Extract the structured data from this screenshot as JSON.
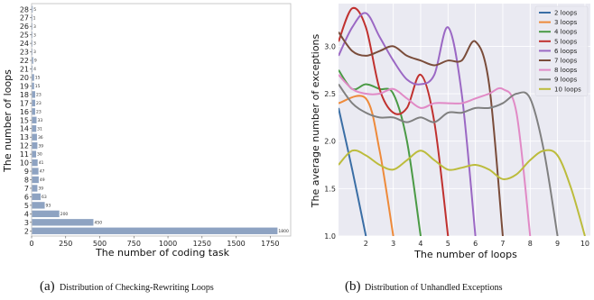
{
  "chart_data": [
    {
      "type": "bar",
      "orientation": "horizontal",
      "categories": [
        "2",
        "3",
        "4",
        "5",
        "6",
        "7",
        "8",
        "9",
        "10",
        "11",
        "12",
        "13",
        "14",
        "15",
        "16",
        "17",
        "18",
        "19",
        "20",
        "21",
        "22",
        "23",
        "24",
        "25",
        "26",
        "27",
        "28"
      ],
      "values": [
        1800,
        450,
        200,
        93,
        63,
        39,
        49,
        47,
        41,
        30,
        39,
        36,
        31,
        33,
        23,
        23,
        23,
        15,
        15,
        4,
        9,
        3,
        3,
        3,
        3,
        1,
        5
      ],
      "value_labels": [
        "1800",
        "450",
        "200",
        "93",
        "63",
        "39",
        "49",
        "47",
        "41",
        "30",
        "39",
        "36",
        "31",
        "33",
        "23",
        "23",
        "23",
        "15",
        "15",
        "4",
        "9",
        "3",
        "3",
        "3",
        "3",
        "1",
        "5"
      ],
      "xlabel": "The number of coding task",
      "ylabel": "The number of loops",
      "xlim": [
        0,
        1900
      ],
      "xticks": [
        "0",
        "250",
        "500",
        "750",
        "1000",
        "1250",
        "1500",
        "1750"
      ],
      "xtick_values": [
        0,
        250,
        500,
        750,
        1000,
        1250,
        1500,
        1750
      ],
      "bar_color": "#8ea3c2",
      "caption_letter": "(a)",
      "caption_text": "Distribution of Checking-Rewriting Loops"
    },
    {
      "type": "line",
      "xlabel": "The number of loops",
      "ylabel": "The average number of exceptions",
      "xlim": [
        1,
        10.2
      ],
      "ylim": [
        1.0,
        3.45
      ],
      "xticks": [
        "2",
        "3",
        "4",
        "5",
        "6",
        "7",
        "8",
        "9",
        "10"
      ],
      "xtick_values": [
        2,
        3,
        4,
        5,
        6,
        7,
        8,
        9,
        10
      ],
      "yticks": [
        "1.0",
        "1.5",
        "2.0",
        "2.5",
        "3.0"
      ],
      "ytick_values": [
        1.0,
        1.5,
        2.0,
        2.5,
        3.0
      ],
      "grid": true,
      "legend_position": "top-right",
      "series": [
        {
          "name": "2 loops",
          "color": "#3a6ea5",
          "x": [
            1.0,
            1.5,
            2.0
          ],
          "y": [
            2.35,
            1.7,
            1.0
          ]
        },
        {
          "name": "3 loops",
          "color": "#ee8a3a",
          "x": [
            1.0,
            2.0,
            2.5,
            3.0
          ],
          "y": [
            2.4,
            2.45,
            1.9,
            1.0
          ]
        },
        {
          "name": "4 loops",
          "color": "#4a9a45",
          "x": [
            1.0,
            1.5,
            2.0,
            2.5,
            3.0,
            3.5,
            4.0
          ],
          "y": [
            2.75,
            2.55,
            2.6,
            2.55,
            2.5,
            2.0,
            1.0
          ]
        },
        {
          "name": "5 loops",
          "color": "#c0312f",
          "x": [
            1.0,
            1.5,
            2.0,
            2.5,
            3.0,
            3.5,
            4.0,
            4.5,
            5.0
          ],
          "y": [
            3.05,
            3.4,
            3.2,
            2.55,
            2.3,
            2.35,
            2.7,
            2.2,
            1.0
          ]
        },
        {
          "name": "6 loops",
          "color": "#9b68c4",
          "x": [
            1.0,
            1.5,
            2.0,
            2.5,
            3.0,
            3.5,
            4.0,
            4.5,
            5.0,
            5.5,
            6.0
          ],
          "y": [
            2.9,
            3.2,
            3.35,
            3.1,
            2.85,
            2.65,
            2.6,
            2.7,
            3.2,
            2.5,
            1.0
          ]
        },
        {
          "name": "7 loops",
          "color": "#7a4c3a",
          "x": [
            1.0,
            1.5,
            2.0,
            2.5,
            3.0,
            3.5,
            4.0,
            4.5,
            5.0,
            5.5,
            6.0,
            6.5,
            7.0
          ],
          "y": [
            3.15,
            2.95,
            2.9,
            2.95,
            3.0,
            2.9,
            2.85,
            2.8,
            2.85,
            2.85,
            3.05,
            2.6,
            1.0
          ]
        },
        {
          "name": "8 loops",
          "color": "#e18ac6",
          "x": [
            1.0,
            1.5,
            2.0,
            2.5,
            3.0,
            3.5,
            4.0,
            4.5,
            5.0,
            5.5,
            6.0,
            6.5,
            7.0,
            7.5,
            8.0
          ],
          "y": [
            2.7,
            2.55,
            2.5,
            2.5,
            2.55,
            2.45,
            2.35,
            2.4,
            2.4,
            2.4,
            2.45,
            2.5,
            2.55,
            2.3,
            1.0
          ]
        },
        {
          "name": "9 loops",
          "color": "#808080",
          "x": [
            1.0,
            1.5,
            2.0,
            2.5,
            3.0,
            3.5,
            4.0,
            4.5,
            5.0,
            5.5,
            6.0,
            6.5,
            7.0,
            7.5,
            8.0,
            8.5,
            9.0
          ],
          "y": [
            2.6,
            2.4,
            2.3,
            2.25,
            2.25,
            2.2,
            2.25,
            2.2,
            2.3,
            2.3,
            2.35,
            2.35,
            2.4,
            2.5,
            2.45,
            1.9,
            1.0
          ]
        },
        {
          "name": "10 loops",
          "color": "#bcbc3c",
          "x": [
            1.0,
            1.5,
            2.0,
            2.5,
            3.0,
            3.5,
            4.0,
            4.5,
            5.0,
            5.5,
            6.0,
            6.5,
            7.0,
            7.5,
            8.0,
            8.5,
            9.0,
            9.5,
            10.0
          ],
          "y": [
            1.75,
            1.9,
            1.85,
            1.75,
            1.7,
            1.8,
            1.9,
            1.8,
            1.7,
            1.72,
            1.75,
            1.7,
            1.6,
            1.65,
            1.8,
            1.9,
            1.85,
            1.5,
            1.0
          ]
        }
      ],
      "caption_letter": "(b)",
      "caption_text": "Distribution of Unhandled Exceptions"
    }
  ]
}
